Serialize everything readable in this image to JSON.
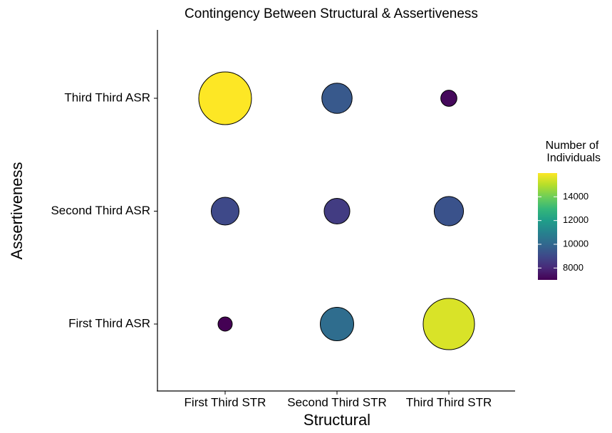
{
  "chart_data": {
    "type": "bubble-grid",
    "title": "Contingency Between Structural & Assertiveness",
    "x_label": "Structural",
    "y_label": "Assertiveness",
    "x_categories": [
      "First Third STR",
      "Second Third STR",
      "Third Third STR"
    ],
    "y_categories": [
      "First Third ASR",
      "Second Third ASR",
      "Third Third ASR"
    ],
    "values": [
      [
        7000,
        10200,
        15500
      ],
      [
        9000,
        8600,
        9300
      ],
      [
        16000,
        9500,
        7200
      ]
    ],
    "legend_title": "Number of\n Individuals",
    "colormap": "viridis",
    "colorlim": [
      7000,
      16000
    ],
    "colorticks": [
      8000,
      10000,
      12000,
      14000
    ]
  }
}
